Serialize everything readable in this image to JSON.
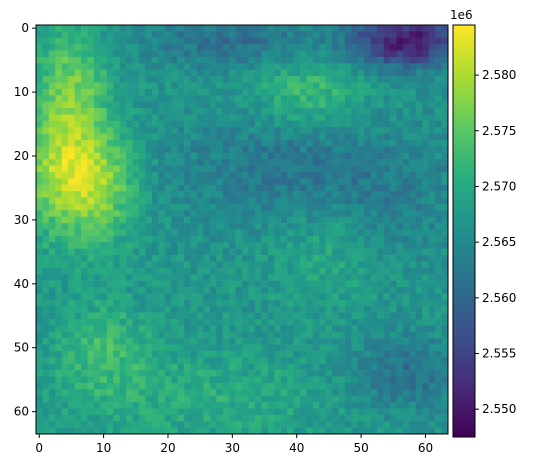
{
  "chart_data": {
    "type": "heatmap",
    "rows": 64,
    "cols": 64,
    "x_ticks": [
      0,
      10,
      20,
      30,
      40,
      50,
      60
    ],
    "y_ticks": [
      0,
      10,
      20,
      30,
      40,
      50,
      60
    ],
    "colorbar": {
      "cmap": "viridis",
      "vmin": 2547500,
      "vmax": 2584500,
      "scale_label": "1e6",
      "ticks": [
        {
          "value": 2550000,
          "label": "2.550"
        },
        {
          "value": 2555000,
          "label": "2.555"
        },
        {
          "value": 2560000,
          "label": "2.560"
        },
        {
          "value": 2565000,
          "label": "2.565"
        },
        {
          "value": 2570000,
          "label": "2.570"
        },
        {
          "value": 2575000,
          "label": "2.575"
        },
        {
          "value": 2580000,
          "label": "2.580"
        }
      ]
    },
    "features": [
      {
        "cx": 4,
        "cy": 22,
        "sx": 5,
        "sy": 7,
        "amp": 13000
      },
      {
        "cx": 10,
        "cy": 25,
        "sx": 4,
        "sy": 6,
        "amp": 7000
      },
      {
        "cx": 5,
        "cy": 8,
        "sx": 4,
        "sy": 6,
        "amp": 8000
      },
      {
        "cx": 42,
        "cy": 10,
        "sx": 6,
        "sy": 4,
        "amp": 6000
      },
      {
        "cx": 10,
        "cy": 50,
        "sx": 5,
        "sy": 5,
        "amp": 5500
      },
      {
        "cx": 57,
        "cy": 2,
        "sx": 6,
        "sy": 3,
        "amp": -17000
      },
      {
        "cx": 30,
        "cy": 2,
        "sx": 10,
        "sy": 3,
        "amp": -6000
      },
      {
        "cx": 40,
        "cy": 22,
        "sx": 14,
        "sy": 6,
        "amp": -5000
      },
      {
        "cx": 57,
        "cy": 54,
        "sx": 6,
        "sy": 4,
        "amp": -6000
      },
      {
        "cx": 25,
        "cy": 58,
        "sx": 15,
        "sy": 5,
        "amp": 3500
      },
      {
        "cx": 45,
        "cy": 35,
        "sx": 6,
        "sy": 6,
        "amp": 3000
      },
      {
        "cx": 55,
        "cy": 30,
        "sx": 6,
        "sy": 6,
        "amp": -2500
      }
    ],
    "base_value": 2567000,
    "noise": 2500
  }
}
